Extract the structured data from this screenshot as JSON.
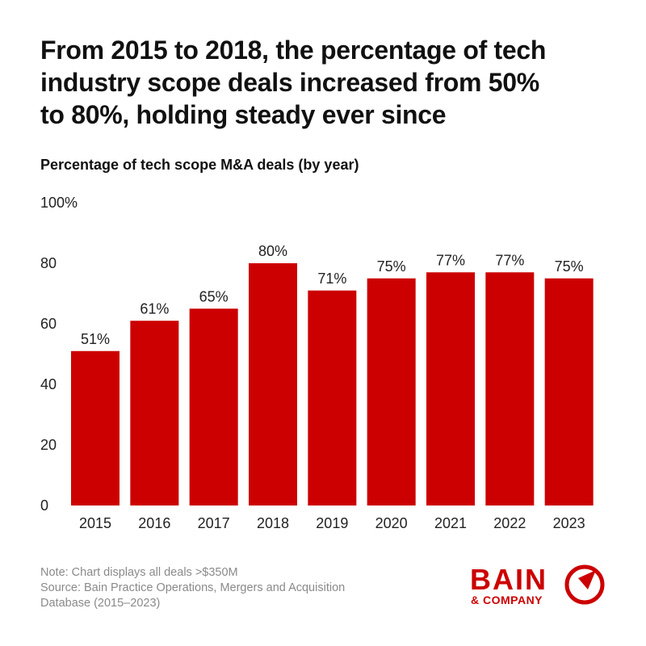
{
  "headline_lines": [
    "From 2015 to 2018, the percentage of tech",
    "industry scope deals increased from 50%",
    "to 80%, holding steady ever since"
  ],
  "subtitle": "Percentage of tech scope M&A deals (by year)",
  "chart_data": {
    "type": "bar",
    "title": "Percentage of tech scope M&A deals (by year)",
    "categories": [
      "2015",
      "2016",
      "2017",
      "2018",
      "2019",
      "2020",
      "2021",
      "2022",
      "2023"
    ],
    "values": [
      51,
      61,
      65,
      80,
      71,
      75,
      77,
      77,
      75
    ],
    "data_labels": [
      "51%",
      "61%",
      "65%",
      "80%",
      "71%",
      "75%",
      "77%",
      "77%",
      "75%"
    ],
    "ylim": [
      0,
      100
    ],
    "yticks": [
      0,
      20,
      40,
      60,
      80,
      100
    ],
    "ytick_labels": [
      "0",
      "20",
      "40",
      "60",
      "80",
      "100%"
    ],
    "xlabel": "",
    "ylabel": "",
    "grid": false,
    "bar_color": "#CC0000"
  },
  "footnote": {
    "note": "Note: Chart displays all deals >$350M",
    "source_lines": [
      "Source: Bain Practice Operations, Mergers and Acquisition",
      "Database (2015–2023)"
    ]
  },
  "logo": {
    "wordmark": "BAIN",
    "tagline": "& COMPANY",
    "color": "#CC0000"
  }
}
